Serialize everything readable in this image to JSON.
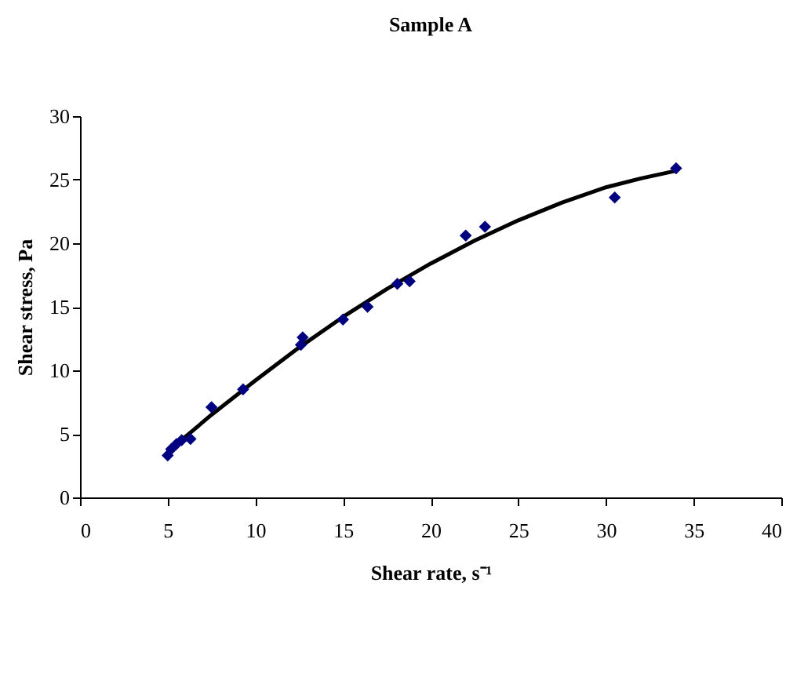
{
  "chart_data": {
    "type": "scatter",
    "title": "Sample A",
    "xlabel": "Shear rate, s⁻¹",
    "ylabel": "Shear stress, Pa",
    "xlim": [
      0,
      40
    ],
    "xticks": [
      0,
      5,
      10,
      15,
      20,
      25,
      30,
      35,
      40
    ],
    "ylim": [
      0,
      30
    ],
    "yticks": [
      0,
      5,
      10,
      15,
      20,
      25,
      30
    ],
    "grid": false,
    "marker": "diamond",
    "series": [
      {
        "color": "#000080",
        "x": [
          5,
          5.2,
          5.5,
          5.8,
          6.3,
          7.5,
          9.3,
          12.6,
          12.7,
          15,
          16.4,
          18.1,
          18.8,
          22,
          23.1,
          30.5,
          34
        ],
        "values": [
          3.3,
          3.8,
          4.2,
          4.5,
          4.6,
          7.1,
          8.5,
          12,
          12.6,
          14,
          15,
          16.8,
          17,
          20.6,
          21.3,
          23.6,
          25.9
        ]
      },
      {
        "type": "line",
        "color": "#000000",
        "marker": "none",
        "x": [
          5,
          7.5,
          10,
          12.5,
          15,
          17.5,
          20,
          22.5,
          25,
          27.5,
          30,
          32,
          34
        ],
        "values": [
          3.6,
          6.5,
          9.2,
          11.8,
          14.2,
          16.4,
          18.4,
          20.2,
          21.8,
          23.2,
          24.4,
          25.1,
          25.7
        ]
      }
    ]
  }
}
